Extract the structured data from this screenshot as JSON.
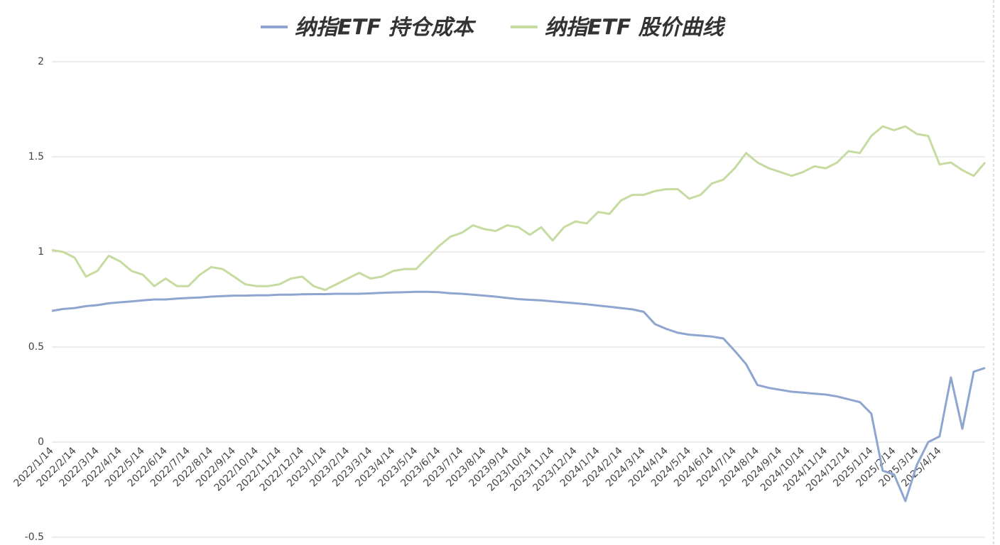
{
  "chart_data": {
    "type": "line",
    "categories": [
      "2022/1/14",
      null,
      "2022/2/14",
      null,
      "2022/3/14",
      null,
      "2022/4/14",
      null,
      "2022/5/14",
      null,
      "2022/6/14",
      null,
      "2022/7/14",
      null,
      "2022/8/14",
      null,
      "2022/9/14",
      null,
      "2022/10/14",
      null,
      "2022/11/14",
      null,
      "2022/12/14",
      null,
      "2023/1/14",
      null,
      "2023/2/14",
      null,
      "2023/3/14",
      null,
      "2023/4/14",
      null,
      "2023/5/14",
      null,
      "2023/6/14",
      null,
      "2023/7/14",
      null,
      "2023/8/14",
      null,
      "2023/9/14",
      null,
      "2023/10/14",
      null,
      "2023/11/14",
      null,
      "2023/12/14",
      null,
      "2024/1/14",
      null,
      "2024/2/14",
      null,
      "2024/3/14",
      null,
      "2024/4/14",
      null,
      "2024/5/14",
      null,
      "2024/6/14",
      null,
      "2024/7/14",
      null,
      "2024/8/14",
      null,
      "2024/9/14",
      null,
      "2024/10/14",
      null,
      "2024/11/14",
      null,
      "2024/12/14",
      null,
      "2025/1/14",
      null,
      "2025/2/14",
      null,
      "2025/3/14",
      null,
      "2025/4/14",
      null,
      null,
      null,
      null
    ],
    "series": [
      {
        "name": "纳指ETF 持仓成本",
        "color": "#8ea5d0",
        "values": [
          0.69,
          0.7,
          0.705,
          0.715,
          0.72,
          0.73,
          0.735,
          0.74,
          0.745,
          0.75,
          0.75,
          0.755,
          0.758,
          0.76,
          0.765,
          0.768,
          0.77,
          0.77,
          0.772,
          0.772,
          0.775,
          0.775,
          0.777,
          0.778,
          0.778,
          0.78,
          0.78,
          0.78,
          0.782,
          0.785,
          0.787,
          0.788,
          0.79,
          0.79,
          0.788,
          0.783,
          0.78,
          0.775,
          0.77,
          0.765,
          0.758,
          0.752,
          0.748,
          0.745,
          0.74,
          0.735,
          0.73,
          0.725,
          0.718,
          0.712,
          0.705,
          0.698,
          0.685,
          0.62,
          0.595,
          0.575,
          0.565,
          0.56,
          0.555,
          0.545,
          0.48,
          0.41,
          0.3,
          0.285,
          0.275,
          0.265,
          0.26,
          0.255,
          0.25,
          0.24,
          0.225,
          0.21,
          0.15,
          -0.15,
          -0.17,
          -0.31,
          -0.12,
          0.0,
          0.03,
          0.34,
          0.07,
          0.37,
          0.39
        ]
      },
      {
        "name": "纳指ETF 股价曲线",
        "color": "#c5dba0",
        "values": [
          1.01,
          1.0,
          0.97,
          0.87,
          0.9,
          0.98,
          0.95,
          0.9,
          0.88,
          0.82,
          0.86,
          0.82,
          0.82,
          0.88,
          0.92,
          0.91,
          0.87,
          0.83,
          0.82,
          0.82,
          0.83,
          0.86,
          0.87,
          0.82,
          0.8,
          0.83,
          0.86,
          0.89,
          0.86,
          0.87,
          0.9,
          0.91,
          0.91,
          0.97,
          1.03,
          1.08,
          1.1,
          1.14,
          1.12,
          1.11,
          1.14,
          1.13,
          1.09,
          1.13,
          1.06,
          1.13,
          1.16,
          1.15,
          1.21,
          1.2,
          1.27,
          1.3,
          1.3,
          1.32,
          1.33,
          1.33,
          1.28,
          1.3,
          1.36,
          1.38,
          1.44,
          1.52,
          1.47,
          1.44,
          1.42,
          1.4,
          1.42,
          1.45,
          1.44,
          1.47,
          1.53,
          1.52,
          1.61,
          1.66,
          1.64,
          1.66,
          1.62,
          1.61,
          1.46,
          1.47,
          1.43,
          1.4,
          1.47
        ]
      }
    ],
    "ylim": [
      -0.5,
      2
    ],
    "yticks": [
      -0.5,
      0,
      0.5,
      1,
      1.5,
      2
    ],
    "grid": true,
    "legend": "top"
  }
}
